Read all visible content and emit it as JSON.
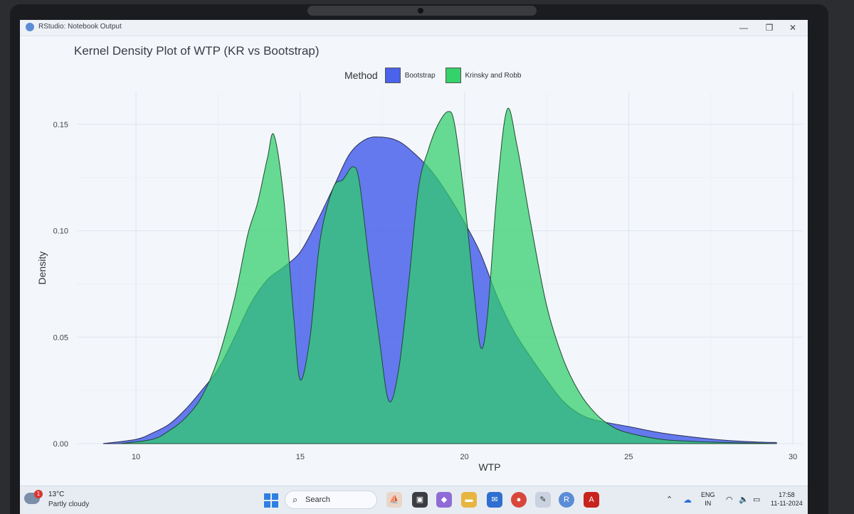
{
  "window": {
    "title": "RStudio: Notebook Output",
    "minimize": "—",
    "restore": "❐",
    "close": "✕"
  },
  "plot_title": "Kernel Density Plot of WTP (KR vs Bootstrap)",
  "legend": {
    "title": "Method",
    "items": [
      {
        "label": "Bootstrap",
        "color": "#4a63ea"
      },
      {
        "label": "Krinsky and Robb",
        "color": "#35d16a"
      }
    ]
  },
  "colors": {
    "bootstrap": "#4a63ea",
    "kr": "#2fcf6a",
    "overlap": "#10a27a"
  },
  "chart_data": {
    "type": "area",
    "title": "Kernel Density Plot of WTP (KR vs Bootstrap)",
    "xlabel": "WTP",
    "ylabel": "Density",
    "xlim": [
      8.2,
      30.3
    ],
    "ylim": [
      0,
      0.165
    ],
    "xticks": [
      10,
      15,
      20,
      25,
      30
    ],
    "yticks": [
      0.0,
      0.05,
      0.1,
      0.15
    ],
    "ytick_labels": [
      "0.00",
      "0.05",
      "0.10",
      "0.15"
    ],
    "grid": true,
    "legend_position": "top",
    "series": [
      {
        "name": "Bootstrap",
        "x": [
          9.0,
          10.0,
          10.5,
          11.0,
          11.5,
          12.0,
          12.5,
          13.0,
          13.5,
          14.0,
          14.5,
          15.0,
          15.5,
          16.0,
          16.5,
          17.0,
          17.5,
          18.0,
          18.5,
          19.0,
          19.5,
          20.0,
          20.5,
          21.0,
          21.5,
          22.0,
          22.5,
          23.0,
          23.5,
          24.0,
          25.0,
          26.0,
          27.0,
          28.0,
          29.0,
          29.5
        ],
        "y": [
          0,
          0.002,
          0.005,
          0.009,
          0.016,
          0.025,
          0.035,
          0.05,
          0.066,
          0.077,
          0.083,
          0.09,
          0.104,
          0.12,
          0.136,
          0.143,
          0.144,
          0.142,
          0.136,
          0.128,
          0.117,
          0.104,
          0.089,
          0.069,
          0.053,
          0.041,
          0.03,
          0.02,
          0.014,
          0.011,
          0.008,
          0.005,
          0.003,
          0.0015,
          0.0007,
          0.0005
        ]
      },
      {
        "name": "Krinsky and Robb",
        "x": [
          9.5,
          10.5,
          11.0,
          11.5,
          12.0,
          12.5,
          13.0,
          13.4,
          13.7,
          14.0,
          14.2,
          14.5,
          14.8,
          15.0,
          15.3,
          15.6,
          16.0,
          16.3,
          16.6,
          16.8,
          17.1,
          17.4,
          17.7,
          18.0,
          18.3,
          18.6,
          18.9,
          19.2,
          19.5,
          19.7,
          20.0,
          20.3,
          20.5,
          20.7,
          21.0,
          21.3,
          21.6,
          22.0,
          22.5,
          23.0,
          23.5,
          24.0,
          24.5,
          25.0,
          26.0,
          27.0,
          28.0,
          29.0,
          29.5
        ],
        "y": [
          0,
          0.002,
          0.006,
          0.012,
          0.022,
          0.04,
          0.068,
          0.098,
          0.113,
          0.134,
          0.145,
          0.115,
          0.06,
          0.03,
          0.05,
          0.095,
          0.12,
          0.124,
          0.13,
          0.123,
          0.085,
          0.05,
          0.02,
          0.035,
          0.075,
          0.12,
          0.138,
          0.15,
          0.156,
          0.15,
          0.115,
          0.07,
          0.045,
          0.06,
          0.12,
          0.157,
          0.14,
          0.105,
          0.065,
          0.04,
          0.024,
          0.014,
          0.008,
          0.005,
          0.002,
          0.001,
          0.0005,
          0.0002,
          0
        ]
      }
    ]
  },
  "taskbar": {
    "weather_badge": "1",
    "temperature": "13°C",
    "condition": "Partly cloudy",
    "search_label": "Search",
    "language_top": "ENG",
    "language_bottom": "IN",
    "time": "17:58",
    "date": "11-11-2024"
  }
}
